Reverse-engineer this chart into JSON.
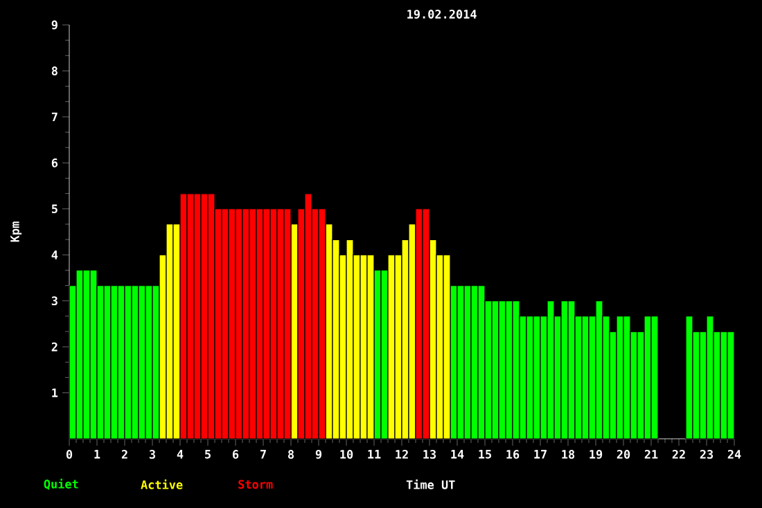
{
  "chart_data": {
    "type": "bar",
    "title": "19.02.2014",
    "xlabel": "Time UT",
    "ylabel": "Kpm",
    "x": [
      0.125,
      0.375,
      0.625,
      0.875,
      1.125,
      1.375,
      1.625,
      1.875,
      2.125,
      2.375,
      2.625,
      2.875,
      3.125,
      3.375,
      3.625,
      3.875,
      4.125,
      4.375,
      4.625,
      4.875,
      5.125,
      5.375,
      5.625,
      5.875,
      6.125,
      6.375,
      6.625,
      6.875,
      7.125,
      7.375,
      7.625,
      7.875,
      8.125,
      8.375,
      8.625,
      8.875,
      9.125,
      9.375,
      9.625,
      9.875,
      10.125,
      10.375,
      10.625,
      10.875,
      11.125,
      11.375,
      11.625,
      11.875,
      12.125,
      12.375,
      12.625,
      12.875,
      13.125,
      13.375,
      13.625,
      13.875,
      14.125,
      14.375,
      14.625,
      14.875,
      15.125,
      15.375,
      15.625,
      15.875,
      16.125,
      16.375,
      16.625,
      16.875,
      17.125,
      17.375,
      17.625,
      17.875,
      18.125,
      18.375,
      18.625,
      18.875,
      19.125,
      19.375,
      19.625,
      19.875,
      20.125,
      20.375,
      20.625,
      20.875,
      21.125,
      21.375,
      21.625,
      21.875,
      22.125,
      22.375,
      22.625,
      22.875,
      23.125,
      23.375,
      23.625,
      23.875
    ],
    "series": [
      {
        "name": "Quiet",
        "color": "#00ff00",
        "values": [
          3.33,
          3.67,
          3.67,
          3.67,
          3.33,
          3.33,
          3.33,
          3.33,
          3.33,
          3.33,
          3.33,
          3.33,
          3.33,
          null,
          null,
          null,
          null,
          null,
          null,
          null,
          null,
          null,
          null,
          null,
          null,
          null,
          null,
          null,
          null,
          null,
          null,
          null,
          null,
          null,
          null,
          null,
          null,
          null,
          null,
          null,
          null,
          null,
          null,
          null,
          3.67,
          3.67,
          null,
          null,
          null,
          null,
          null,
          null,
          null,
          null,
          null,
          3.33,
          3.33,
          3.33,
          3.33,
          3.33,
          3.0,
          3.0,
          3.0,
          3.0,
          3.0,
          2.67,
          2.67,
          2.67,
          2.67,
          3.0,
          2.67,
          3.0,
          3.0,
          2.67,
          2.67,
          2.67,
          3.0,
          2.67,
          2.33,
          2.67,
          2.67,
          2.33,
          2.33,
          2.67,
          2.67,
          null,
          null,
          null,
          null,
          2.67,
          2.33,
          2.33,
          2.67,
          2.33,
          2.33,
          2.33
        ]
      },
      {
        "name": "Active",
        "color": "#ffff00",
        "values": [
          null,
          null,
          null,
          null,
          null,
          null,
          null,
          null,
          null,
          null,
          null,
          null,
          null,
          4.0,
          4.67,
          4.67,
          null,
          null,
          null,
          null,
          null,
          null,
          null,
          null,
          null,
          null,
          null,
          null,
          null,
          null,
          null,
          null,
          4.67,
          null,
          null,
          null,
          null,
          4.67,
          4.33,
          4.0,
          4.33,
          4.0,
          4.0,
          4.0,
          null,
          null,
          4.0,
          4.0,
          4.33,
          4.67,
          null,
          null,
          4.33,
          4.0,
          4.0,
          null,
          null,
          null,
          null,
          null,
          null,
          null,
          null,
          null,
          null,
          null,
          null,
          null,
          null,
          null,
          null,
          null,
          null,
          null,
          null,
          null,
          null,
          null,
          null,
          null,
          null,
          null,
          null,
          null,
          null,
          null,
          null,
          null,
          null,
          null,
          null,
          null,
          null,
          null,
          null,
          null
        ]
      },
      {
        "name": "Storm",
        "color": "#ff0000",
        "values": [
          null,
          null,
          null,
          null,
          null,
          null,
          null,
          null,
          null,
          null,
          null,
          null,
          null,
          null,
          null,
          null,
          5.33,
          5.33,
          5.33,
          5.33,
          5.33,
          5.0,
          5.0,
          5.0,
          5.0,
          5.0,
          5.0,
          5.0,
          5.0,
          5.0,
          5.0,
          5.0,
          null,
          5.0,
          5.33,
          5.0,
          5.0,
          null,
          null,
          null,
          null,
          null,
          null,
          null,
          null,
          null,
          null,
          null,
          null,
          null,
          5.0,
          5.0,
          null,
          null,
          null,
          null,
          null,
          null,
          null,
          null,
          null,
          null,
          null,
          null,
          null,
          null,
          null,
          null,
          null,
          null,
          null,
          null,
          null,
          null,
          null,
          null,
          null,
          null,
          null,
          null,
          null,
          null,
          null,
          null,
          null,
          null,
          null,
          null,
          null,
          null,
          null,
          null,
          null,
          null,
          null,
          null
        ]
      }
    ],
    "xlim": [
      0,
      24
    ],
    "xticks": [
      0,
      1,
      2,
      3,
      4,
      5,
      6,
      7,
      8,
      9,
      10,
      11,
      12,
      13,
      14,
      15,
      16,
      17,
      18,
      19,
      20,
      21,
      22,
      23,
      24
    ],
    "ylim": [
      0,
      9
    ],
    "yticks": [
      1,
      2,
      3,
      4,
      5,
      6,
      7,
      8,
      9
    ],
    "legend": "bottom"
  }
}
